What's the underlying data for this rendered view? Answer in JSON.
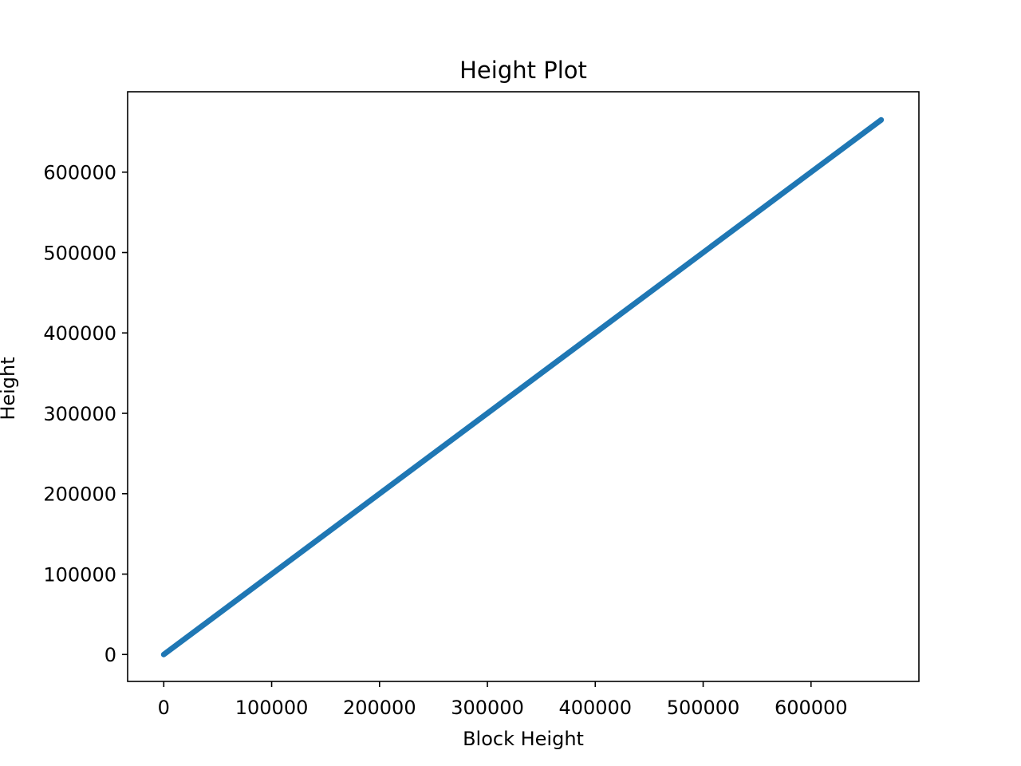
{
  "chart_data": {
    "type": "scatter",
    "title": "Height Plot",
    "xlabel": "Block Height",
    "ylabel": "Height",
    "xlim": [
      -33500,
      700000
    ],
    "ylim": [
      -33500,
      700000
    ],
    "xticks": [
      0,
      100000,
      200000,
      300000,
      400000,
      500000,
      600000
    ],
    "yticks": [
      0,
      100000,
      200000,
      300000,
      400000,
      500000,
      600000
    ],
    "xtick_labels": [
      "0",
      "100000",
      "200000",
      "300000",
      "400000",
      "500000",
      "600000"
    ],
    "ytick_labels": [
      "0",
      "100000",
      "200000",
      "300000",
      "400000",
      "500000",
      "600000"
    ],
    "grid": false,
    "series": [
      {
        "color": "#1f77b4",
        "x": [
          0,
          665000
        ],
        "y": [
          0,
          665000
        ]
      }
    ]
  }
}
